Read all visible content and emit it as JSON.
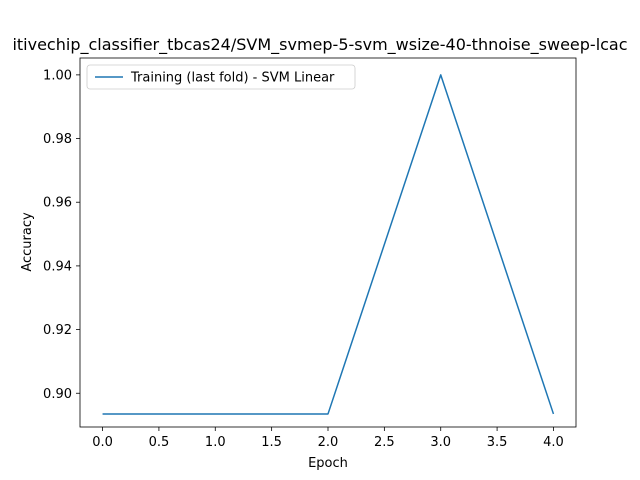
{
  "chart_data": {
    "type": "line",
    "title": "itivechip_classifier_tbcas24/SVM_svmep-5-svm_wsize-40-thnoise_sweep-lcac",
    "xlabel": "Epoch",
    "ylabel": "Accuracy",
    "xlim": [
      -0.2,
      4.2
    ],
    "ylim": [
      0.8894,
      1.0053
    ],
    "xticks": [
      0.0,
      0.5,
      1.0,
      1.5,
      2.0,
      2.5,
      3.0,
      3.5,
      4.0
    ],
    "xtick_labels": [
      "0.0",
      "0.5",
      "1.0",
      "1.5",
      "2.0",
      "2.5",
      "3.0",
      "3.5",
      "4.0"
    ],
    "yticks": [
      0.9,
      0.92,
      0.94,
      0.96,
      0.98,
      1.0
    ],
    "ytick_labels": [
      "0.90",
      "0.92",
      "0.94",
      "0.96",
      "0.98",
      "1.00"
    ],
    "grid": false,
    "legend_position": "upper-left",
    "series": [
      {
        "name": "Training (last fold) - SVM Linear",
        "color": "#1f77b4",
        "x": [
          0,
          1,
          2,
          3,
          4
        ],
        "y": [
          0.8935,
          0.8935,
          0.8935,
          1.0,
          0.8935
        ]
      }
    ]
  }
}
